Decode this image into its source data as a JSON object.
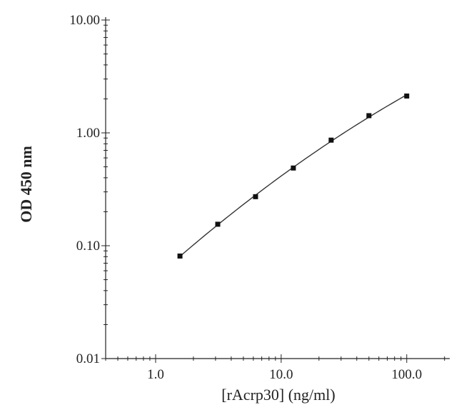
{
  "chart_data": {
    "type": "scatter",
    "title": "",
    "xlabel": "[rAcrp30] (ng/ml)",
    "ylabel": "OD 450 nm",
    "x_scale": "log",
    "y_scale": "log",
    "xlim": [
      0.4,
      220
    ],
    "ylim": [
      0.01,
      10
    ],
    "x_ticks": [
      {
        "value": 1,
        "label": "1.0"
      },
      {
        "value": 10,
        "label": "10.0"
      },
      {
        "value": 100,
        "label": "100.0"
      }
    ],
    "y_ticks": [
      {
        "value": 0.01,
        "label": "0.01"
      },
      {
        "value": 0.1,
        "label": "0.10"
      },
      {
        "value": 1,
        "label": "1.00"
      },
      {
        "value": 10,
        "label": "10.00"
      }
    ],
    "grid": false,
    "legend": "none",
    "series": [
      {
        "x": [
          1.5625,
          3.125,
          6.25,
          12.5,
          25,
          50,
          100
        ],
        "y": [
          0.081,
          0.155,
          0.272,
          0.488,
          0.862,
          1.42,
          2.12
        ],
        "marker": "square",
        "fit_line": true,
        "color": "#111111"
      }
    ]
  }
}
